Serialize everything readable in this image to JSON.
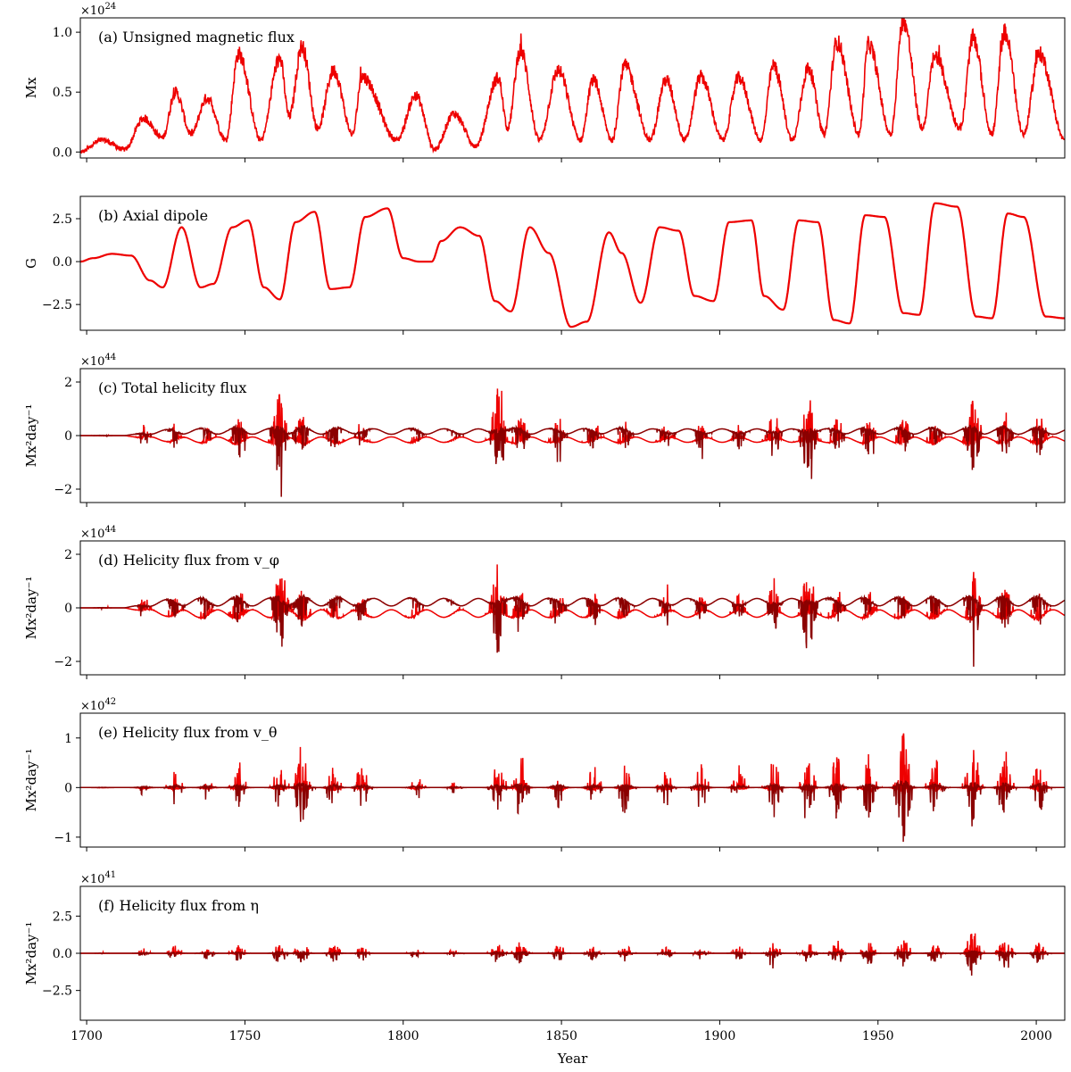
{
  "chart_data": {
    "type": "line",
    "xlabel": "Year",
    "xlim": [
      1698,
      2009
    ],
    "x_ticks": [
      1700,
      1750,
      1800,
      1850,
      1900,
      1950,
      2000
    ],
    "colors": {
      "primary": "#ee0000",
      "secondary": "#8b0000"
    },
    "panels": [
      {
        "id": "a",
        "title": "(a) Unsigned magnetic flux",
        "ylabel": "Mx",
        "multiplier_base": "×10",
        "multiplier_exp": "24",
        "ylim": [
          -0.05,
          1.12
        ],
        "y_ticks": [
          0.0,
          0.5,
          1.0
        ],
        "y_tick_labels": [
          "0.0",
          "0.5",
          "1.0"
        ],
        "cycle_peak_years": [
          1705,
          1718,
          1728,
          1738,
          1748,
          1761,
          1768,
          1778,
          1787,
          1804,
          1816,
          1830,
          1837,
          1849,
          1860,
          1870,
          1883,
          1894,
          1906,
          1917,
          1928,
          1937,
          1947,
          1958,
          1968,
          1980,
          1990,
          2001
        ],
        "cycle_peak_values": [
          0.1,
          0.28,
          0.5,
          0.45,
          0.82,
          0.78,
          0.88,
          0.68,
          0.63,
          0.47,
          0.32,
          0.62,
          0.85,
          0.68,
          0.6,
          0.72,
          0.6,
          0.63,
          0.62,
          0.72,
          0.7,
          0.92,
          0.9,
          1.1,
          0.8,
          0.95,
          1.0,
          0.82
        ],
        "series": [
          {
            "values_x": [
              1698,
              1705,
              1712,
              1718,
              1724,
              1728,
              1733,
              1738,
              1744,
              1748,
              1755,
              1761,
              1764,
              1768,
              1773,
              1778,
              1784,
              1787,
              1798,
              1804,
              1810,
              1816,
              1823,
              1830,
              1833,
              1837,
              1843,
              1849,
              1856,
              1860,
              1866,
              1870,
              1878,
              1883,
              1889,
              1894,
              1901,
              1906,
              1913,
              1917,
              1923,
              1928,
              1933,
              1937,
              1944,
              1947,
              1954,
              1958,
              1964,
              1968,
              1976,
              1980,
              1986,
              1990,
              1996,
              2001,
              2009
            ],
            "values_y": [
              0.0,
              0.1,
              0.02,
              0.28,
              0.12,
              0.5,
              0.15,
              0.45,
              0.1,
              0.82,
              0.1,
              0.78,
              0.3,
              0.88,
              0.2,
              0.68,
              0.15,
              0.63,
              0.1,
              0.47,
              0.02,
              0.32,
              0.05,
              0.62,
              0.2,
              0.85,
              0.1,
              0.68,
              0.1,
              0.6,
              0.1,
              0.72,
              0.1,
              0.6,
              0.1,
              0.63,
              0.1,
              0.62,
              0.1,
              0.72,
              0.1,
              0.7,
              0.15,
              0.92,
              0.15,
              0.9,
              0.15,
              1.1,
              0.2,
              0.8,
              0.2,
              0.95,
              0.15,
              1.0,
              0.15,
              0.82,
              0.1
            ]
          }
        ]
      },
      {
        "id": "b",
        "title": "(b) Axial dipole",
        "ylabel": "G",
        "multiplier_base": "",
        "multiplier_exp": "",
        "ylim": [
          -4.0,
          3.8
        ],
        "y_ticks": [
          -2.5,
          0.0,
          2.5
        ],
        "y_tick_labels": [
          "−2.5",
          "0.0",
          "2.5"
        ],
        "series": [
          {
            "values_x": [
              1698,
              1702,
              1708,
              1714,
              1720,
              1724,
              1730,
              1736,
              1740,
              1746,
              1751,
              1756,
              1761,
              1766,
              1772,
              1777,
              1783,
              1788,
              1795,
              1800,
              1805,
              1809,
              1812,
              1818,
              1824,
              1829,
              1834,
              1840,
              1846,
              1853,
              1858,
              1865,
              1869,
              1875,
              1881,
              1887,
              1892,
              1898,
              1903,
              1910,
              1914,
              1920,
              1925,
              1931,
              1936,
              1941,
              1946,
              1952,
              1958,
              1963,
              1968,
              1975,
              1981,
              1986,
              1991,
              1996,
              2003,
              2009
            ],
            "values_y": [
              0.0,
              0.2,
              0.45,
              0.35,
              -1.1,
              -1.5,
              2.0,
              -1.5,
              -1.3,
              2.0,
              2.4,
              -1.5,
              -2.2,
              2.3,
              2.9,
              -1.6,
              -1.5,
              2.6,
              3.1,
              0.2,
              0.0,
              0.0,
              1.2,
              2.0,
              1.5,
              -2.3,
              -2.9,
              2.0,
              0.5,
              -3.8,
              -3.5,
              1.7,
              0.5,
              -2.4,
              2.0,
              1.8,
              -2.0,
              -2.3,
              2.3,
              2.4,
              -2.0,
              -2.8,
              2.4,
              2.3,
              -3.4,
              -3.6,
              2.7,
              2.6,
              -3.0,
              -3.1,
              3.4,
              3.2,
              -3.2,
              -3.3,
              2.8,
              2.6,
              -3.2,
              -3.3
            ]
          }
        ]
      },
      {
        "id": "c",
        "title": "(c) Total helicity flux",
        "ylabel": "Mx²day⁻¹",
        "multiplier_base": "×10",
        "multiplier_exp": "44",
        "ylim": [
          -2.5,
          2.5
        ],
        "y_ticks": [
          -2.0,
          0.0,
          2.0
        ],
        "y_tick_labels": [
          "−2",
          "0",
          "2"
        ],
        "cycle_peak_years": [
          1705,
          1718,
          1728,
          1738,
          1748,
          1761,
          1768,
          1778,
          1787,
          1804,
          1816,
          1830,
          1837,
          1849,
          1860,
          1870,
          1883,
          1894,
          1906,
          1917,
          1928,
          1937,
          1947,
          1958,
          1968,
          1980,
          1990,
          2001
        ],
        "spike_scale": [
          0.1,
          0.5,
          0.7,
          0.6,
          1.2,
          2.2,
          1.3,
          0.9,
          0.8,
          0.5,
          0.3,
          2.1,
          1.0,
          0.9,
          0.8,
          0.8,
          0.7,
          0.7,
          0.7,
          1.1,
          2.1,
          1.0,
          1.0,
          1.0,
          0.9,
          1.9,
          1.3,
          1.2
        ],
        "background_amplitude": 0.25
      },
      {
        "id": "d",
        "title": "(d) Helicity flux from v_φ",
        "ylabel": "Mx²day⁻¹",
        "multiplier_base": "×10",
        "multiplier_exp": "44",
        "ylim": [
          -2.5,
          2.5
        ],
        "y_ticks": [
          -2.0,
          0.0,
          2.0
        ],
        "y_tick_labels": [
          "−2",
          "0",
          "2"
        ],
        "cycle_peak_years": [
          1705,
          1718,
          1728,
          1738,
          1748,
          1761,
          1768,
          1778,
          1787,
          1804,
          1816,
          1830,
          1837,
          1849,
          1860,
          1870,
          1883,
          1894,
          1906,
          1917,
          1928,
          1937,
          1947,
          1958,
          1968,
          1980,
          1990,
          2001
        ],
        "spike_scale": [
          0.1,
          0.5,
          0.7,
          0.6,
          1.2,
          2.2,
          1.3,
          0.9,
          0.8,
          0.5,
          0.3,
          2.1,
          1.0,
          0.9,
          0.8,
          0.8,
          0.7,
          0.7,
          0.7,
          1.1,
          2.1,
          1.0,
          1.0,
          1.0,
          0.9,
          1.9,
          1.3,
          1.2
        ],
        "background_amplitude": 0.35
      },
      {
        "id": "e",
        "title": "(e) Helicity flux from v_θ",
        "ylabel": "Mx²day⁻¹",
        "multiplier_base": "×10",
        "multiplier_exp": "42",
        "ylim": [
          -1.2,
          1.5
        ],
        "y_ticks": [
          -1.0,
          0.0,
          1.0
        ],
        "y_tick_labels": [
          "−1",
          "0",
          "1"
        ],
        "cycle_peak_years": [
          1705,
          1718,
          1728,
          1738,
          1748,
          1761,
          1768,
          1778,
          1787,
          1804,
          1816,
          1830,
          1837,
          1849,
          1860,
          1870,
          1883,
          1894,
          1906,
          1917,
          1928,
          1937,
          1947,
          1958,
          1968,
          1980,
          1990,
          2001
        ],
        "spike_scale": [
          0.05,
          0.2,
          0.4,
          0.3,
          0.5,
          0.5,
          1.0,
          0.6,
          0.55,
          0.3,
          0.15,
          0.6,
          0.8,
          0.6,
          0.55,
          0.6,
          0.5,
          0.55,
          0.55,
          0.7,
          0.6,
          0.8,
          0.8,
          1.4,
          0.7,
          1.0,
          0.9,
          0.8
        ],
        "background_amplitude": 0.0
      },
      {
        "id": "f",
        "title": "(f) Helicity flux from η",
        "ylabel": "Mx²day⁻¹",
        "multiplier_base": "×10",
        "multiplier_exp": "41",
        "ylim": [
          -4.5,
          4.5
        ],
        "y_ticks": [
          -2.5,
          0.0,
          2.5
        ],
        "y_tick_labels": [
          "−2.5",
          "0.0",
          "2.5"
        ],
        "cycle_peak_years": [
          1705,
          1718,
          1728,
          1738,
          1748,
          1761,
          1768,
          1778,
          1787,
          1804,
          1816,
          1830,
          1837,
          1849,
          1860,
          1870,
          1883,
          1894,
          1906,
          1917,
          1928,
          1937,
          1947,
          1958,
          1968,
          1980,
          1990,
          2001
        ],
        "spike_scale": [
          0.1,
          0.4,
          0.6,
          0.5,
          0.7,
          0.8,
          0.8,
          0.7,
          0.6,
          0.4,
          0.3,
          0.8,
          0.9,
          0.7,
          0.6,
          0.7,
          0.6,
          0.6,
          0.6,
          0.8,
          0.8,
          1.0,
          1.0,
          1.2,
          0.9,
          1.8,
          1.3,
          0.9
        ],
        "background_amplitude": 0.0
      }
    ]
  }
}
